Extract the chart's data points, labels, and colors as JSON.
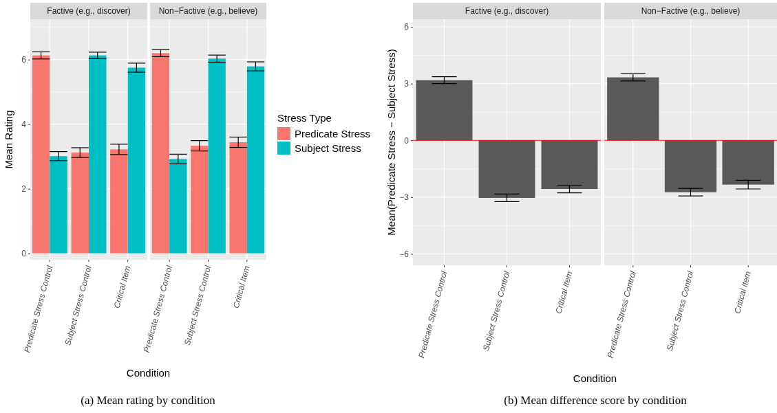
{
  "chart_data": [
    {
      "type": "bar",
      "title": "Factive (e.g., discover)",
      "xlabel": "Condition",
      "ylabel": "Mean Rating",
      "categories": [
        "Predicate Stress Control",
        "Subject Stress Control",
        "Critical Item"
      ],
      "series": [
        {
          "color": "#f8766d",
          "values": [
            6.13,
            3.12,
            3.22
          ],
          "errors": [
            0.11,
            0.15,
            0.16
          ]
        },
        {
          "color": "#00bfc4",
          "values": [
            3.01,
            6.13,
            5.75
          ],
          "errors": [
            0.14,
            0.1,
            0.14
          ]
        }
      ],
      "ylim": [
        -0.2,
        7.25
      ],
      "yticks": [
        0,
        2,
        4,
        6
      ],
      "grid": true,
      "annotations": [
        "(a) Mean rating by condition"
      ]
    },
    {
      "type": "bar",
      "title": "Non−Factive (e.g., believe)",
      "categories": [
        "Predicate Stress Control",
        "Subject Stress Control",
        "Critical Item"
      ],
      "series": [
        {
          "name": "Predicate Stress",
          "color": "#f8766d",
          "values": [
            6.2,
            3.33,
            3.44
          ],
          "errors": [
            0.11,
            0.16,
            0.16
          ]
        },
        {
          "name": "Subject Stress",
          "color": "#00bfc4",
          "values": [
            2.92,
            6.03,
            5.79
          ],
          "errors": [
            0.15,
            0.11,
            0.14
          ]
        }
      ],
      "ylim": [
        -0.2,
        7.25
      ],
      "yticks": [
        0,
        2,
        4,
        6
      ],
      "grid": true,
      "tick_labels": "x",
      "legend": "right",
      "legend_title": "Stress Type"
    },
    {
      "type": "bar",
      "title": "Factive (e.g., discover)",
      "xlabel": "Condition",
      "ylabel": "Mean(Predicate Stress − Subject Stress)",
      "categories": [
        "Predicate Stress Control",
        "Subject Stress Control",
        "Critical Item"
      ],
      "color": "#595959",
      "values": [
        3.18,
        -3.04,
        -2.57
      ],
      "errors": [
        0.18,
        0.2,
        0.2
      ],
      "ylim": [
        -6.6,
        6.4
      ],
      "yticks": [
        -6,
        -3,
        0,
        3,
        6
      ],
      "grid": true,
      "ref_lines": [
        {
          "axis": "y",
          "value": 0,
          "color": "#ff0000"
        }
      ],
      "annotations": [
        "(b) Mean difference score by condition"
      ]
    },
    {
      "type": "bar",
      "title": "Non−Factive (e.g., believe)",
      "categories": [
        "Predicate Stress Control",
        "Subject Stress Control",
        "Critical Item"
      ],
      "color": "#595959",
      "values": [
        3.33,
        -2.74,
        -2.34
      ],
      "errors": [
        0.19,
        0.2,
        0.23
      ],
      "ylim": [
        -6.6,
        6.4
      ],
      "yticks": [
        -6,
        -3,
        0,
        3,
        6
      ],
      "grid": true,
      "tick_labels": "x",
      "ref_lines": [
        {
          "axis": "y",
          "value": 0,
          "color": "#ff0000"
        }
      ]
    }
  ]
}
